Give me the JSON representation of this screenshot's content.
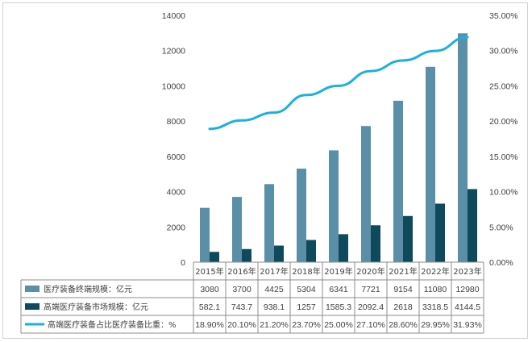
{
  "chart_data": {
    "type": "bar",
    "categories": [
      "2015年",
      "2016年",
      "2017年",
      "2018年",
      "2019年",
      "2020年",
      "2021年",
      "2022年",
      "2023年"
    ],
    "series": [
      {
        "name": "医疗装备终端规模：亿元",
        "kind": "bar",
        "axis": "left",
        "color": "#5b8fa8",
        "values": [
          3080,
          3700,
          4425,
          5304,
          6341,
          7721,
          9154,
          11080,
          12980
        ],
        "labels": [
          "3080",
          "3700",
          "4425",
          "5304",
          "6341",
          "7721",
          "9154",
          "11080",
          "12980"
        ]
      },
      {
        "name": "高端医疗装备市场规模：亿元",
        "kind": "bar",
        "axis": "left",
        "color": "#0e4a5c",
        "values": [
          582.1,
          743.7,
          938.1,
          1257,
          1585.3,
          2092.4,
          2618,
          3318.5,
          4144.5
        ],
        "labels": [
          "582.1",
          "743.7",
          "938.1",
          "1257",
          "1585.3",
          "2092.4",
          "2618",
          "3318.5",
          "4144.5"
        ]
      },
      {
        "name": "高端医疗装备占比医疗装备比重：%",
        "kind": "line",
        "axis": "right",
        "color": "#1ab0e0",
        "values": [
          18.9,
          20.1,
          21.2,
          23.7,
          25.0,
          27.1,
          28.6,
          29.95,
          31.93
        ],
        "labels": [
          "18.90%",
          "20.10%",
          "21.20%",
          "23.70%",
          "25.00%",
          "27.10%",
          "28.60%",
          "29.95%",
          "31.93%"
        ]
      }
    ],
    "y_left": {
      "min": 0,
      "max": 14000,
      "ticks": [
        "0",
        "2000",
        "4000",
        "6000",
        "8000",
        "10000",
        "12000",
        "14000"
      ]
    },
    "y_right": {
      "min": 0,
      "max": 35,
      "ticks": [
        "0.00%",
        "5.00%",
        "10.00%",
        "15.00%",
        "20.00%",
        "25.00%",
        "30.00%",
        "35.00%"
      ]
    },
    "grid": false,
    "legend": "data-table-below"
  }
}
